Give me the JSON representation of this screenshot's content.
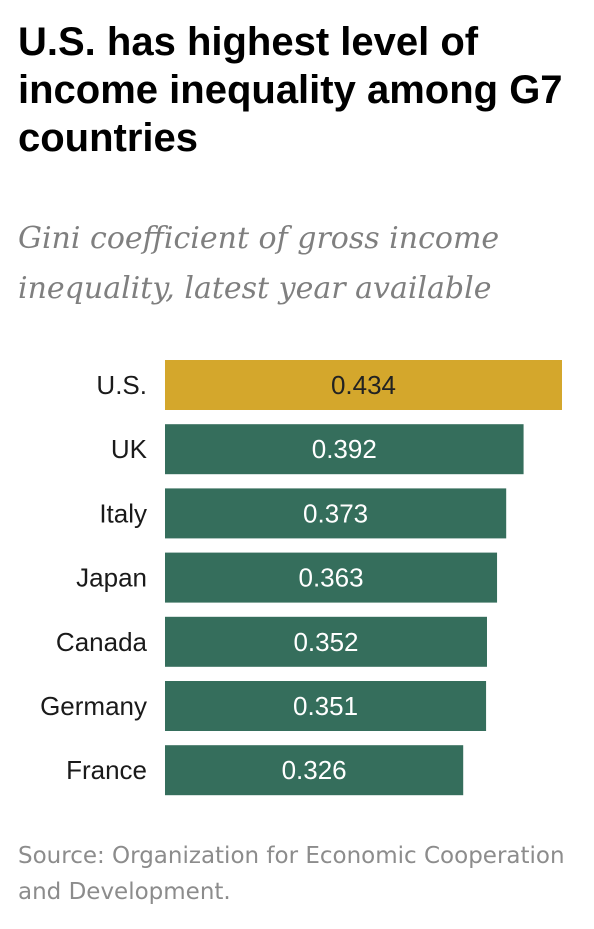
{
  "title": "U.S. has highest level of income inequality among G7 countries",
  "subtitle": "Gini coefficient of gross income inequality, latest year available",
  "source": "Source: Organization for Economic Cooperation and Development.",
  "colors": {
    "highlight": "#d4a72c",
    "bar": "#356e5c",
    "highlight_label": "#222222",
    "bar_label": "#ffffff"
  },
  "chart_data": {
    "type": "bar",
    "orientation": "horizontal",
    "categories": [
      "U.S.",
      "UK",
      "Italy",
      "Japan",
      "Canada",
      "Germany",
      "France"
    ],
    "values": [
      0.434,
      0.392,
      0.373,
      0.363,
      0.352,
      0.351,
      0.326
    ],
    "value_labels": [
      "0.434",
      "0.392",
      "0.373",
      "0.363",
      "0.352",
      "0.351",
      "0.326"
    ],
    "highlight_index": 0,
    "xlim": [
      0,
      0.434
    ],
    "grid": false,
    "legend": "none"
  }
}
